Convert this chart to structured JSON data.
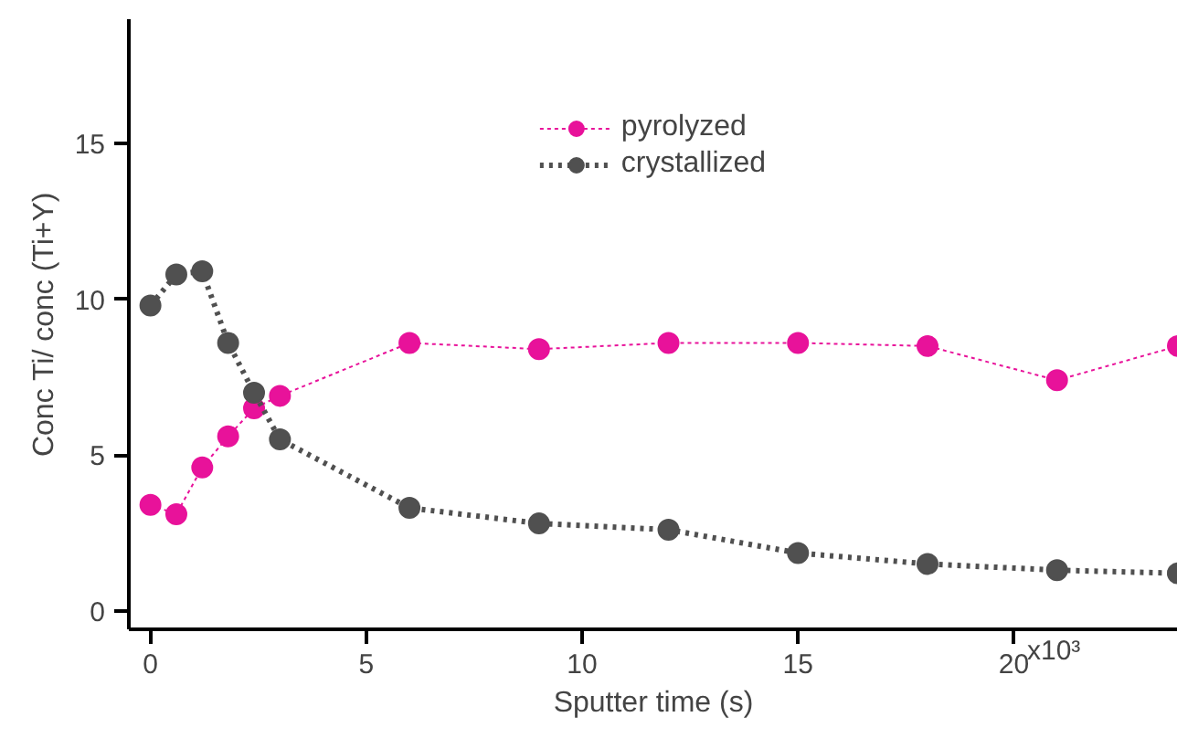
{
  "chart_data": {
    "type": "line",
    "xlabel": "Sputter time (s)",
    "ylabel": "Conc Ti/ conc (Ti+Y)",
    "xlim": [
      -0.5,
      23.8
    ],
    "ylim": [
      -0.6,
      19
    ],
    "xticks": [
      0,
      5,
      10,
      15,
      20
    ],
    "annotations": [
      "x10³"
    ],
    "yticks": [
      0,
      5,
      10,
      15
    ],
    "grid": false,
    "legend": "top",
    "marker": "circle",
    "series": [
      {
        "name": "pyrolyzed",
        "color": "#e8129a",
        "line_style": "dashed",
        "x": [
          0,
          0.6,
          1.2,
          1.8,
          2.4,
          3,
          6,
          9,
          12,
          15,
          18,
          21,
          23.8
        ],
        "values": [
          3.4,
          3.1,
          4.6,
          5.6,
          6.5,
          6.9,
          8.6,
          8.4,
          8.6,
          8.6,
          8.5,
          7.4,
          8.5
        ]
      },
      {
        "name": "crystallized",
        "color": "#505050",
        "line_style": "dotted",
        "x": [
          0,
          0.6,
          1.2,
          1.8,
          2.4,
          3,
          6,
          9,
          12,
          15,
          18,
          21,
          23.8
        ],
        "values": [
          9.8,
          10.8,
          10.9,
          8.6,
          7.0,
          5.5,
          3.3,
          2.8,
          2.6,
          1.85,
          1.5,
          1.3,
          1.2
        ]
      }
    ]
  }
}
